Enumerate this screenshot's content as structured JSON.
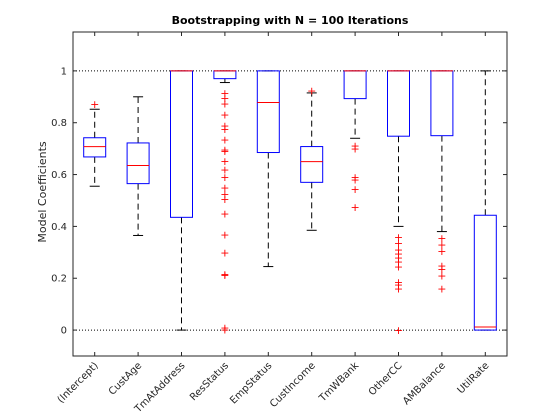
{
  "chart_data": {
    "type": "box",
    "title": "Bootstrapping with N = 100 Iterations",
    "xlabel": "",
    "ylabel": "Model Coefficients",
    "ylim": [
      -0.1,
      1.15
    ],
    "yticks": [
      0,
      0.2,
      0.4,
      0.6,
      0.8,
      1
    ],
    "ytick_labels": [
      "0",
      "0.2",
      "0.4",
      "0.6",
      "0.8",
      "1"
    ],
    "reference_lines": [
      0,
      1
    ],
    "grid": false,
    "colors": {
      "box": "#0000ff",
      "median": "#ff0000",
      "outlier": "#ff0000",
      "whisker": "#000000",
      "axis": "#262626"
    },
    "categories": [
      "(Intercept)",
      "CustAge",
      "TmAtAddress",
      "ResStatus",
      "EmpStatus",
      "CustIncome",
      "TmWBank",
      "OtherCC",
      "AMBalance",
      "UtilRate"
    ],
    "boxes": [
      {
        "q1": 0.668,
        "median": 0.708,
        "q3": 0.742,
        "whisker_low": 0.555,
        "whisker_high": 0.852,
        "outliers": [
          0.873
        ]
      },
      {
        "q1": 0.565,
        "median": 0.635,
        "q3": 0.722,
        "whisker_low": 0.365,
        "whisker_high": 0.9,
        "outliers": []
      },
      {
        "q1": 0.435,
        "median": 1.0,
        "q3": 1.0,
        "whisker_low": 0.0,
        "whisker_high": 1.0,
        "outliers": []
      },
      {
        "q1": 0.97,
        "median": 1.0,
        "q3": 1.0,
        "whisker_low": 0.955,
        "whisker_high": 1.0,
        "outliers": [
          0.915,
          0.895,
          0.875,
          0.832,
          0.79,
          0.775,
          0.735,
          0.697,
          0.69,
          0.653,
          0.62,
          0.59,
          0.55,
          0.525,
          0.505,
          0.45,
          0.368,
          0.3,
          0.217,
          0.212,
          0.01,
          0.003
        ]
      },
      {
        "q1": 0.685,
        "median": 0.878,
        "q3": 1.0,
        "whisker_low": 0.245,
        "whisker_high": 1.0,
        "outliers": []
      },
      {
        "q1": 0.57,
        "median": 0.65,
        "q3": 0.708,
        "whisker_low": 0.385,
        "whisker_high": 0.915,
        "outliers": [
          0.925
        ]
      },
      {
        "q1": 0.893,
        "median": 1.0,
        "q3": 1.0,
        "whisker_low": 0.74,
        "whisker_high": 1.0,
        "outliers": [
          0.712,
          0.7,
          0.59,
          0.58,
          0.545,
          0.475
        ]
      },
      {
        "q1": 0.748,
        "median": 1.0,
        "q3": 1.0,
        "whisker_low": 0.4,
        "whisker_high": 1.0,
        "outliers": [
          0.36,
          0.335,
          0.31,
          0.295,
          0.28,
          0.265,
          0.245,
          0.185,
          0.175,
          0.16,
          0.0
        ]
      },
      {
        "q1": 0.75,
        "median": 1.0,
        "q3": 1.0,
        "whisker_low": 0.38,
        "whisker_high": 1.0,
        "outliers": [
          0.355,
          0.33,
          0.305,
          0.25,
          0.235,
          0.21,
          0.16
        ]
      },
      {
        "q1": 0.0,
        "median": 0.012,
        "q3": 0.443,
        "whisker_low": 0.0,
        "whisker_high": 1.0,
        "outliers": []
      }
    ]
  }
}
